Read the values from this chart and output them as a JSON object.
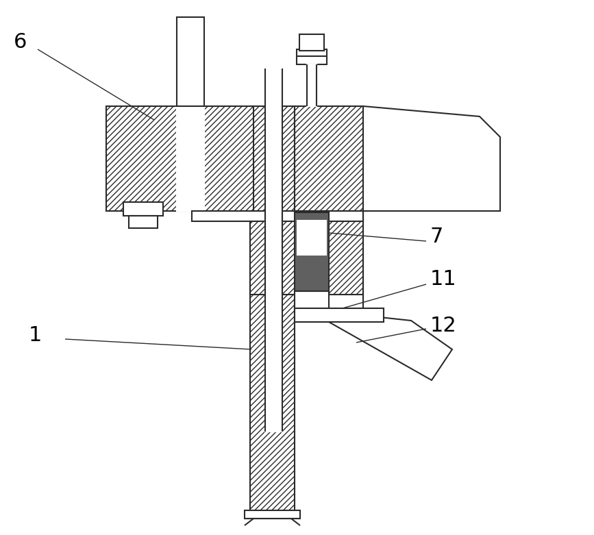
{
  "bg_color": "#ffffff",
  "line_color": "#2a2a2a",
  "dark_fill": "#606060",
  "lw": 1.5,
  "label_fontsize": 22,
  "label_color": "#000000",
  "leader_lw": 1.0
}
